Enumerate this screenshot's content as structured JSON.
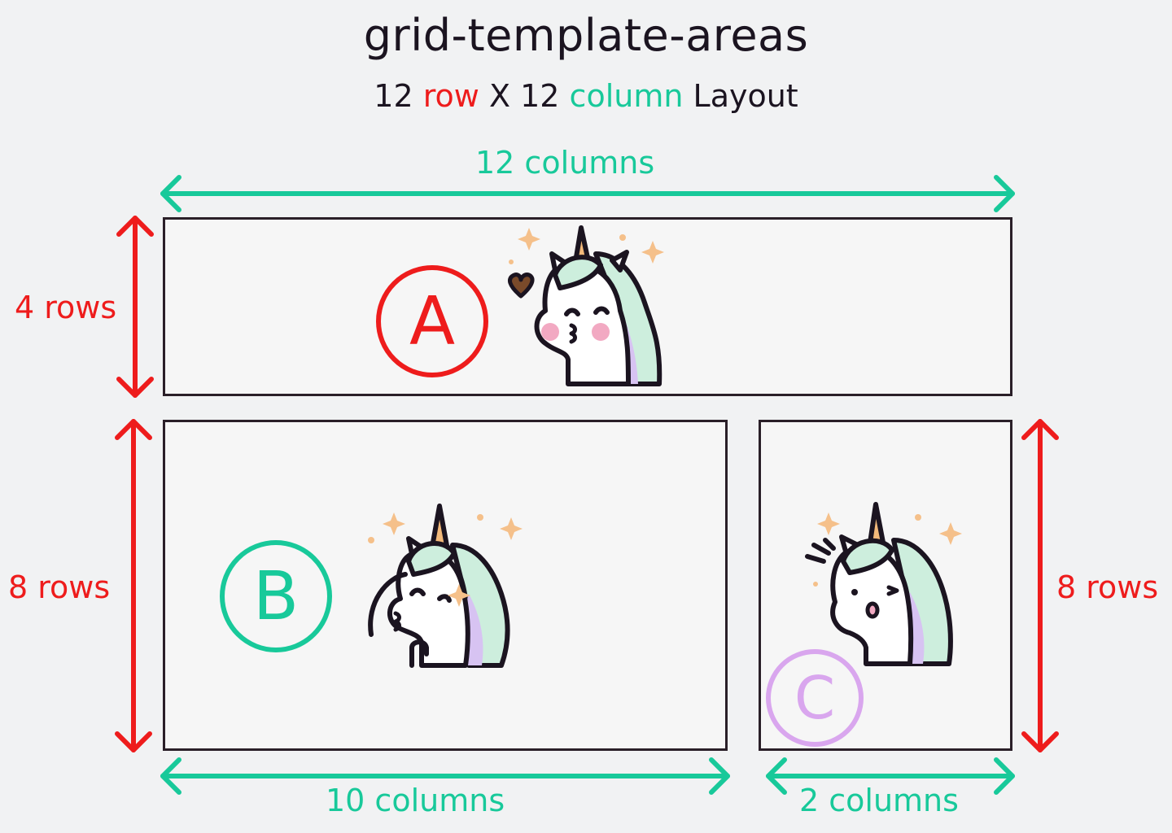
{
  "title": "grid-template-areas",
  "subtitle": {
    "n1": "12",
    "row_word": "row",
    "x": "X",
    "n2": "12",
    "col_word": "column",
    "layout": "Layout"
  },
  "labels": {
    "top_columns": "12 columns",
    "a_rows": "4 rows",
    "b_rows": "8 rows",
    "c_rows": "8 rows",
    "b_columns": "10 columns",
    "c_columns": "2 columns"
  },
  "areas": {
    "a": "A",
    "b": "B",
    "c": "C"
  },
  "colors": {
    "row": "#ee1c1c",
    "column": "#18c99a",
    "area_c": "#d9a6ee",
    "border": "#2a1f28"
  },
  "icons": [
    "unicorn-kiss-icon",
    "unicorn-blowing-icon",
    "unicorn-surprised-icon",
    "sparkle-icon",
    "heart-icon"
  ]
}
